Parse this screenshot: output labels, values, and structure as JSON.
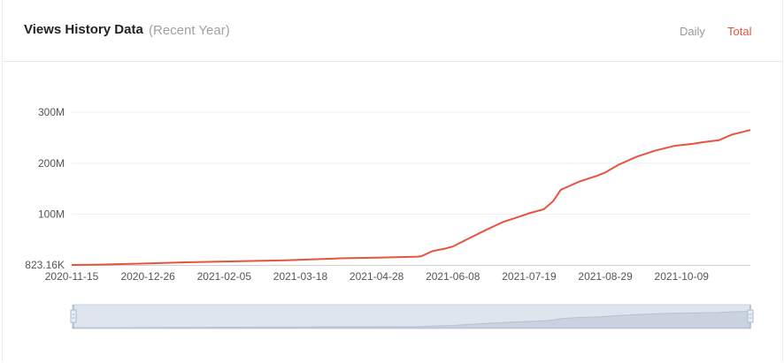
{
  "header": {
    "title": "Views History Data",
    "subtitle": "(Recent Year)",
    "tabs": [
      {
        "label": "Daily",
        "active": false
      },
      {
        "label": "Total",
        "active": true
      }
    ]
  },
  "colors": {
    "line": "#e8533f",
    "active_tab": "#e8533f",
    "inactive_tab": "#999999",
    "zoom_fill": "#dfe5ee",
    "zoom_handle": "#a9bbd3"
  },
  "chart_data": {
    "type": "line",
    "ylim": [
      823160,
      300000000
    ],
    "yticks": [
      {
        "value": 823160,
        "label": "823.16K"
      },
      {
        "value": 100000000,
        "label": "100M"
      },
      {
        "value": 200000000,
        "label": "200M"
      },
      {
        "value": 300000000,
        "label": "300M"
      }
    ],
    "xticks": [
      "2020-11-15",
      "2020-12-26",
      "2021-02-05",
      "2021-03-18",
      "2021-04-28",
      "2021-06-08",
      "2021-07-19",
      "2021-08-29",
      "2021-10-09"
    ],
    "xrange": [
      "2020-11-15",
      "2021-11-15"
    ],
    "grid": true,
    "series": [
      {
        "x": [
          "2020-11-15",
          "2020-12-01",
          "2020-12-26",
          "2021-01-15",
          "2021-02-05",
          "2021-02-25",
          "2021-03-10",
          "2021-03-18",
          "2021-04-10",
          "2021-04-28",
          "2021-05-20",
          "2021-05-22",
          "2021-05-28",
          "2021-06-04",
          "2021-06-08",
          "2021-06-15",
          "2021-06-25",
          "2021-07-05",
          "2021-07-15",
          "2021-07-19",
          "2021-07-27",
          "2021-08-01",
          "2021-08-05",
          "2021-08-15",
          "2021-08-25",
          "2021-08-29",
          "2021-09-05",
          "2021-09-15",
          "2021-09-25",
          "2021-10-05",
          "2021-10-15",
          "2021-10-20",
          "2021-10-29",
          "2021-11-05",
          "2021-11-15"
        ],
        "y": [
          823160,
          1500000,
          4000000,
          6000000,
          7500000,
          9000000,
          10000000,
          11000000,
          14000000,
          15000000,
          17000000,
          18000000,
          28000000,
          33000000,
          37000000,
          50000000,
          68000000,
          85000000,
          97000000,
          102000000,
          110000000,
          126000000,
          148000000,
          164000000,
          176000000,
          182000000,
          197000000,
          213000000,
          225000000,
          234000000,
          238000000,
          241000000,
          245000000,
          256000000,
          265000000
        ]
      }
    ]
  }
}
